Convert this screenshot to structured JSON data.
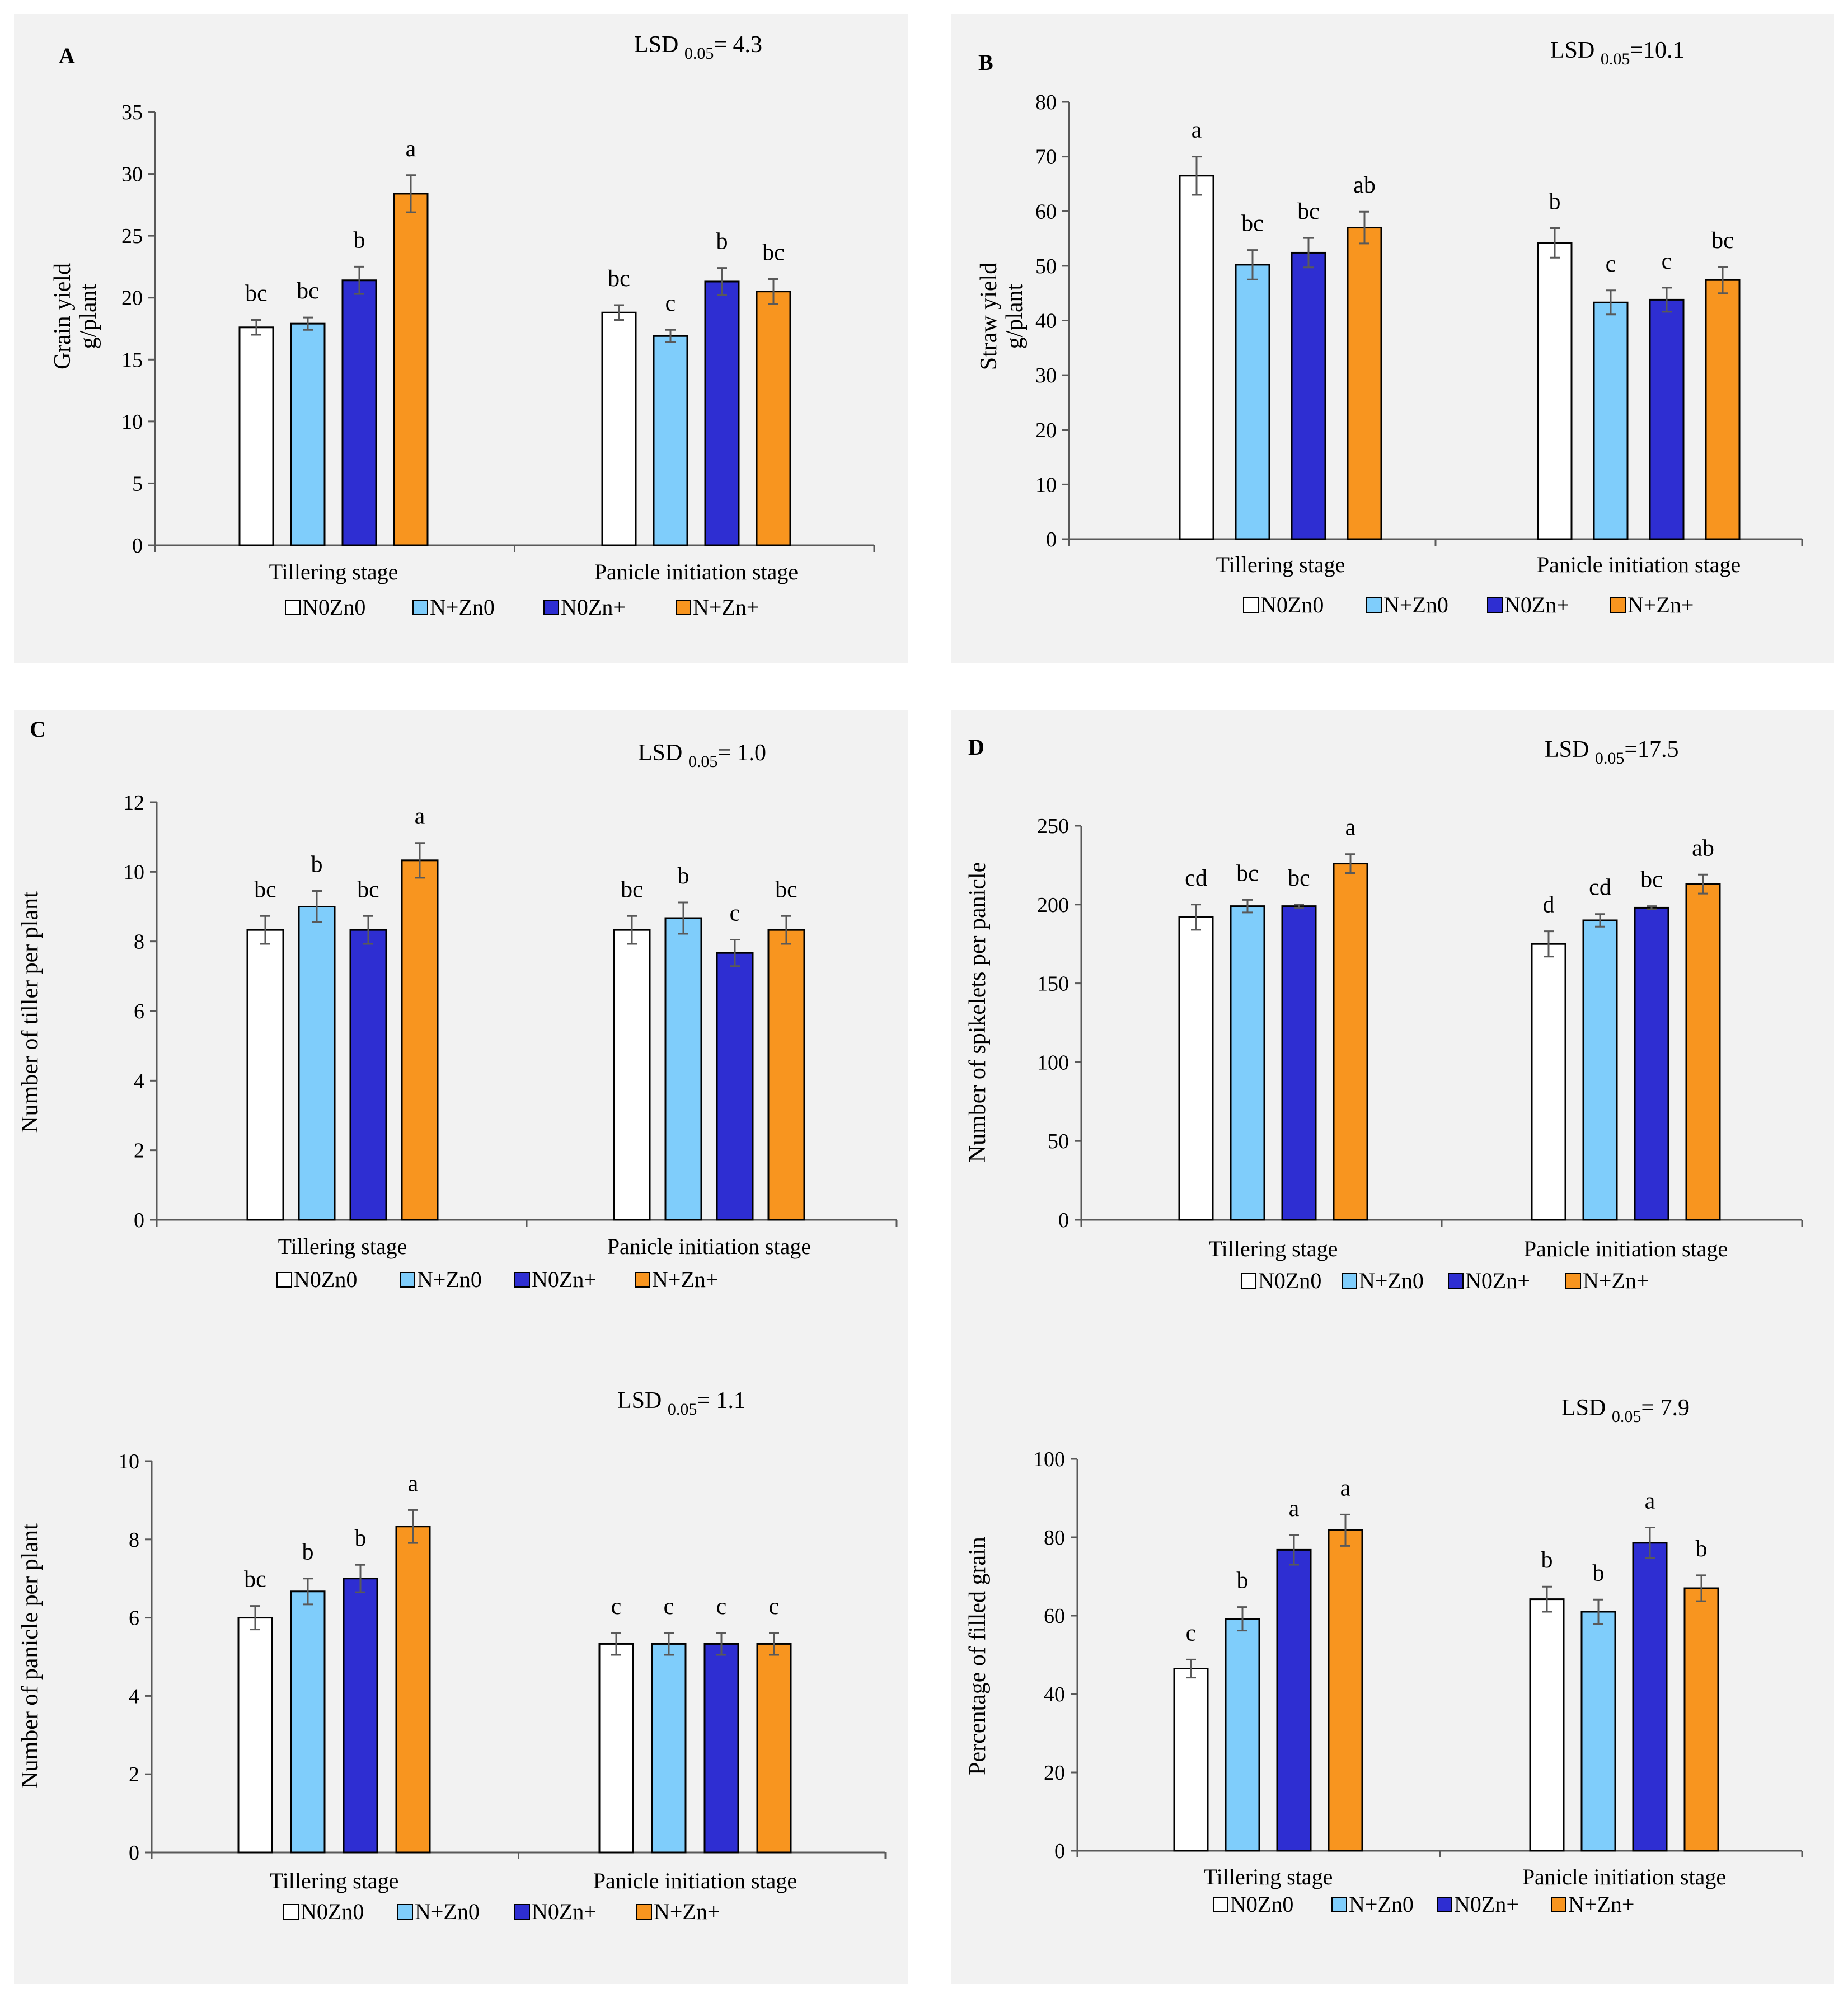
{
  "colors": {
    "series": [
      "#ffffff",
      "#7fcdfb",
      "#2e2ed2",
      "#f8951f"
    ],
    "axis": "#595959",
    "panel_bg": "#f2f2f2",
    "error_bar": "#595959"
  },
  "legend": [
    "N0Zn0",
    "N+Zn0",
    "N0Zn+",
    "N+Zn+"
  ],
  "categories": [
    "Tillering stage",
    "Panicle initiation stage"
  ],
  "chart_data": [
    {
      "type": "bar",
      "panel_label": "A",
      "lsd": {
        "prefix": "LSD",
        "sub": "0.05",
        "value": "= 4.3"
      },
      "ylabel": [
        "Grain yield",
        "g/plant"
      ],
      "ylim": [
        0,
        35
      ],
      "yticks": [
        0,
        5,
        10,
        15,
        20,
        25,
        30,
        35
      ],
      "categories": [
        "Tillering stage",
        "Panicle initiation stage"
      ],
      "series": [
        {
          "name": "N0Zn0",
          "values": [
            17.6,
            18.8
          ],
          "errors": [
            0.6,
            0.6
          ],
          "letters": [
            "bc",
            "bc"
          ]
        },
        {
          "name": "N+Zn0",
          "values": [
            17.9,
            16.9
          ],
          "errors": [
            0.5,
            0.5
          ],
          "letters": [
            "bc",
            "c"
          ]
        },
        {
          "name": "N0Zn+",
          "values": [
            21.4,
            21.3
          ],
          "errors": [
            1.1,
            1.1
          ],
          "letters": [
            "b",
            "b"
          ]
        },
        {
          "name": "N+Zn+",
          "values": [
            28.4,
            20.5
          ],
          "errors": [
            1.5,
            1.0
          ],
          "letters": [
            "a",
            "bc"
          ]
        }
      ]
    },
    {
      "type": "bar",
      "panel_label": "B",
      "lsd": {
        "prefix": "LSD",
        "sub": "0.05",
        "value": "=10.1"
      },
      "ylabel": [
        "Straw yield",
        "g/plant"
      ],
      "ylim": [
        0,
        80
      ],
      "yticks": [
        0,
        10,
        20,
        30,
        40,
        50,
        60,
        70,
        80
      ],
      "categories": [
        "Tillering stage",
        "Panicle initiation stage"
      ],
      "series": [
        {
          "name": "N0Zn0",
          "values": [
            66.5,
            54.2
          ],
          "errors": [
            3.5,
            2.7
          ],
          "letters": [
            "a",
            "b"
          ]
        },
        {
          "name": "N+Zn0",
          "values": [
            50.2,
            43.3
          ],
          "errors": [
            2.7,
            2.2
          ],
          "letters": [
            "bc",
            "c"
          ]
        },
        {
          "name": "N0Zn+",
          "values": [
            52.4,
            43.8
          ],
          "errors": [
            2.7,
            2.2
          ],
          "letters": [
            "bc",
            "c"
          ]
        },
        {
          "name": "N+Zn+",
          "values": [
            57.0,
            47.4
          ],
          "errors": [
            2.9,
            2.4
          ],
          "letters": [
            "ab",
            "bc"
          ]
        }
      ]
    },
    {
      "type": "bar",
      "panel_label": "C",
      "lsd": {
        "prefix": "LSD",
        "sub": "0.05",
        "value": "= 1.0"
      },
      "ylabel": [
        "Number of tiller per plant"
      ],
      "ylim": [
        0,
        12
      ],
      "yticks": [
        0,
        2,
        4,
        6,
        8,
        10,
        12
      ],
      "categories": [
        "Tillering stage",
        "Panicle initiation stage"
      ],
      "series": [
        {
          "name": "N0Zn0",
          "values": [
            8.33,
            8.33
          ],
          "errors": [
            0.4,
            0.4
          ],
          "letters": [
            "bc",
            "bc"
          ]
        },
        {
          "name": "N+Zn0",
          "values": [
            9.0,
            8.67
          ],
          "errors": [
            0.45,
            0.45
          ],
          "letters": [
            "b",
            "b"
          ]
        },
        {
          "name": "N0Zn+",
          "values": [
            8.33,
            7.67
          ],
          "errors": [
            0.4,
            0.38
          ],
          "letters": [
            "bc",
            "c"
          ]
        },
        {
          "name": "N+Zn+",
          "values": [
            10.33,
            8.33
          ],
          "errors": [
            0.5,
            0.4
          ],
          "letters": [
            "a",
            "bc"
          ]
        }
      ]
    },
    {
      "type": "bar",
      "panel_label": "D",
      "lsd": {
        "prefix": "LSD",
        "sub": "0.05",
        "value": "=17.5"
      },
      "ylabel": [
        "Number of spikelets per panicle"
      ],
      "ylim": [
        0,
        250
      ],
      "yticks": [
        0,
        50,
        100,
        150,
        200,
        250
      ],
      "categories": [
        "Tillering stage",
        "Panicle initiation stage"
      ],
      "series": [
        {
          "name": "N0Zn0",
          "values": [
            192,
            175
          ],
          "errors": [
            8,
            8
          ],
          "letters": [
            "cd",
            "d"
          ]
        },
        {
          "name": "N+Zn0",
          "values": [
            199,
            190
          ],
          "errors": [
            4,
            4
          ],
          "letters": [
            "bc",
            "cd"
          ]
        },
        {
          "name": "N0Zn+",
          "values": [
            199,
            198
          ],
          "errors": [
            1,
            1
          ],
          "letters": [
            "bc",
            "bc"
          ]
        },
        {
          "name": "N+Zn+",
          "values": [
            226,
            213
          ],
          "errors": [
            6,
            6
          ],
          "letters": [
            "a",
            "ab"
          ]
        }
      ]
    },
    {
      "type": "bar",
      "panel_label": "",
      "lsd": {
        "prefix": "LSD",
        "sub": "0.05",
        "value": "= 1.1"
      },
      "ylabel": [
        "Number of panicle per plant"
      ],
      "ylim": [
        0,
        10
      ],
      "yticks": [
        0,
        2,
        4,
        6,
        8,
        10
      ],
      "categories": [
        "Tillering stage",
        "Panicle initiation stage"
      ],
      "series": [
        {
          "name": "N0Zn0",
          "values": [
            6.0,
            5.33
          ],
          "errors": [
            0.3,
            0.28
          ],
          "letters": [
            "bc",
            "c"
          ]
        },
        {
          "name": "N+Zn0",
          "values": [
            6.67,
            5.33
          ],
          "errors": [
            0.33,
            0.28
          ],
          "letters": [
            "b",
            "c"
          ]
        },
        {
          "name": "N0Zn+",
          "values": [
            7.0,
            5.33
          ],
          "errors": [
            0.35,
            0.28
          ],
          "letters": [
            "b",
            "c"
          ]
        },
        {
          "name": "N+Zn+",
          "values": [
            8.33,
            5.33
          ],
          "errors": [
            0.42,
            0.28
          ],
          "letters": [
            "a",
            "c"
          ]
        }
      ]
    },
    {
      "type": "bar",
      "panel_label": "",
      "lsd": {
        "prefix": "LSD",
        "sub": "0.05",
        "value": "= 7.9"
      },
      "ylabel": [
        "Percentage of filled grain"
      ],
      "ylim": [
        0,
        100
      ],
      "yticks": [
        0,
        20,
        40,
        60,
        80,
        100
      ],
      "categories": [
        "Tillering stage",
        "Panicle initiation stage"
      ],
      "series": [
        {
          "name": "N0Zn0",
          "values": [
            46.5,
            64.2
          ],
          "errors": [
            2.3,
            3.2
          ],
          "letters": [
            "c",
            "b"
          ]
        },
        {
          "name": "N+Zn0",
          "values": [
            59.2,
            61.0
          ],
          "errors": [
            3.0,
            3.1
          ],
          "letters": [
            "b",
            "b"
          ]
        },
        {
          "name": "N0Zn+",
          "values": [
            76.8,
            78.6
          ],
          "errors": [
            3.8,
            3.9
          ],
          "letters": [
            "a",
            "a"
          ]
        },
        {
          "name": "N+Zn+",
          "values": [
            81.8,
            67.0
          ],
          "errors": [
            4.0,
            3.3
          ],
          "letters": [
            "a",
            "b"
          ]
        }
      ]
    }
  ]
}
